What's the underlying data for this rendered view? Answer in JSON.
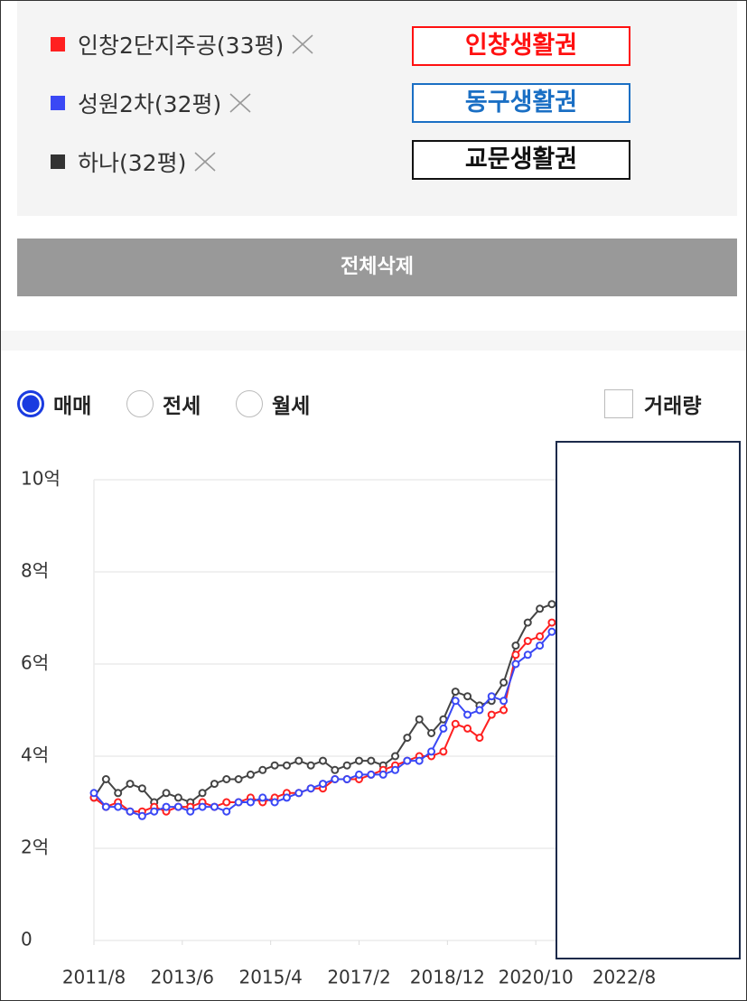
{
  "chart_data": {
    "type": "line",
    "x": [
      "2011/8",
      "2011/11",
      "2012/2",
      "2012/5",
      "2012/8",
      "2012/11",
      "2013/2",
      "2013/5",
      "2013/8",
      "2013/11",
      "2014/2",
      "2014/5",
      "2014/8",
      "2014/11",
      "2015/2",
      "2015/5",
      "2015/8",
      "2015/11",
      "2016/2",
      "2016/5",
      "2016/8",
      "2016/11",
      "2017/2",
      "2017/5",
      "2017/8",
      "2017/11",
      "2018/2",
      "2018/5",
      "2018/8",
      "2018/11",
      "2019/2",
      "2019/5",
      "2019/8",
      "2019/11",
      "2020/2",
      "2020/5",
      "2020/8",
      "2020/11",
      "2021/2"
    ],
    "series": [
      {
        "name": "인창2단지주공(33평)",
        "color": "#ff2020",
        "values": [
          3.1,
          2.9,
          3.0,
          2.8,
          2.8,
          2.9,
          2.8,
          2.9,
          2.9,
          3.0,
          2.9,
          3.0,
          3.0,
          3.1,
          3.0,
          3.1,
          3.2,
          3.2,
          3.3,
          3.3,
          3.5,
          3.5,
          3.5,
          3.6,
          3.7,
          3.8,
          3.9,
          4.0,
          4.0,
          4.1,
          4.7,
          4.6,
          4.4,
          4.9,
          5.0,
          6.2,
          6.5,
          6.6,
          6.9
        ]
      },
      {
        "name": "성원2차(32평)",
        "color": "#3a48f5",
        "values": [
          3.2,
          2.9,
          2.9,
          2.8,
          2.7,
          2.8,
          2.9,
          2.9,
          2.8,
          2.9,
          2.9,
          2.8,
          3.0,
          3.0,
          3.1,
          3.0,
          3.1,
          3.2,
          3.3,
          3.4,
          3.5,
          3.5,
          3.6,
          3.6,
          3.6,
          3.7,
          3.9,
          3.9,
          4.1,
          4.6,
          5.2,
          4.9,
          5.0,
          5.3,
          5.2,
          6.0,
          6.2,
          6.4,
          6.7
        ]
      },
      {
        "name": "하나(32평)",
        "color": "#444444",
        "values": [
          3.1,
          3.5,
          3.2,
          3.4,
          3.3,
          3.0,
          3.2,
          3.1,
          3.0,
          3.2,
          3.4,
          3.5,
          3.5,
          3.6,
          3.7,
          3.8,
          3.8,
          3.9,
          3.8,
          3.9,
          3.7,
          3.8,
          3.9,
          3.9,
          3.8,
          4.0,
          4.4,
          4.8,
          4.5,
          4.8,
          5.4,
          5.3,
          5.1,
          5.2,
          5.6,
          6.4,
          6.9,
          7.2,
          7.3
        ]
      }
    ],
    "xlim": [
      "2011/8",
      "2022/8"
    ],
    "xticks": [
      "2011/8",
      "2013/6",
      "2015/4",
      "2017/2",
      "2018/12",
      "2020/10",
      "2022/8"
    ],
    "ylim": [
      0,
      10
    ],
    "yticks": [
      0,
      {
        "value": 2,
        "label": "2억"
      },
      {
        "value": 4,
        "label": "4억"
      },
      {
        "value": 6,
        "label": "6억"
      },
      {
        "value": 8,
        "label": "8억"
      },
      {
        "value": 10,
        "label": "10억"
      }
    ],
    "grid": true
  },
  "tags": [
    {
      "label": "인창생활권",
      "color": "#ff1010"
    },
    {
      "label": "동구생활권",
      "color": "#1a6fc4"
    },
    {
      "label": "교문생활권",
      "color": "#111111"
    }
  ],
  "button": "전체삭제",
  "radios": [
    {
      "label": "매매",
      "selected": true
    },
    {
      "label": "전세",
      "selected": false
    },
    {
      "label": "월세",
      "selected": false
    }
  ],
  "checkbox": {
    "label": "거래량",
    "checked": false
  }
}
